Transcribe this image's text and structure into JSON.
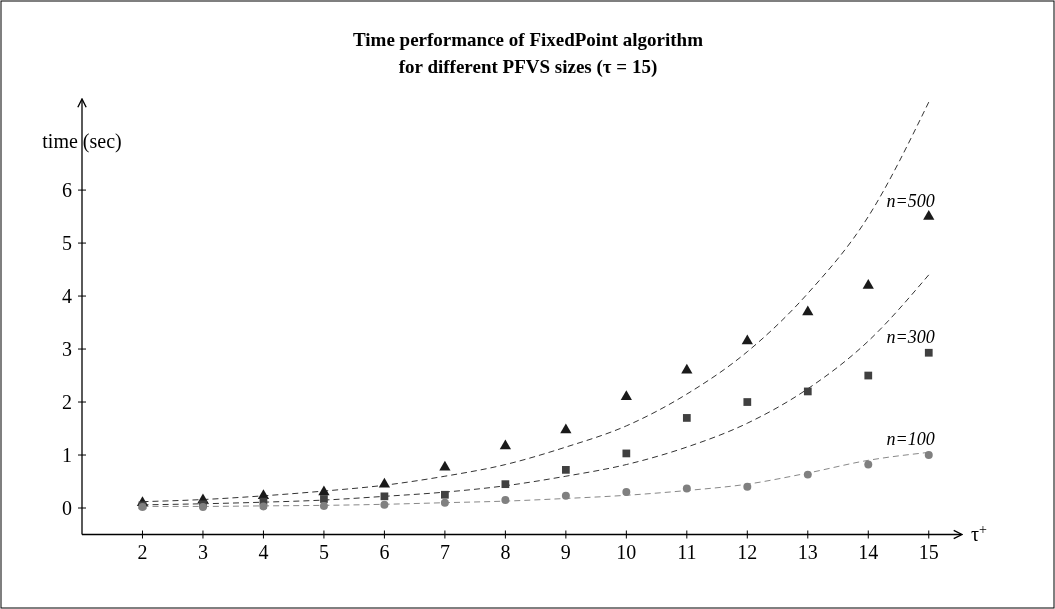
{
  "chart_data": {
    "type": "scatter",
    "title": "Time performance of FixedPoint algorithm\nfor different PFVS sizes (τ = 15)",
    "xlabel": "τ$^{+}$",
    "ylabel": "time (sec)",
    "xlim": [
      1,
      15.5
    ],
    "xticks": [
      2,
      3,
      4,
      5,
      6,
      7,
      8,
      9,
      10,
      11,
      12,
      13,
      14,
      15
    ],
    "ylim": [
      -0.5,
      7.7
    ],
    "yticks": [
      0,
      1,
      2,
      3,
      4,
      5,
      6
    ],
    "grid": false,
    "series": [
      {
        "type": "line",
        "color": "#333333",
        "line_style": "dashed",
        "marker": "none",
        "x": [
          2,
          3,
          4,
          5,
          6,
          7,
          8,
          9,
          10,
          11,
          12,
          13,
          14,
          15
        ],
        "values": [
          0.12,
          0.16,
          0.23,
          0.32,
          0.43,
          0.6,
          0.82,
          1.15,
          1.55,
          2.15,
          2.95,
          4.05,
          5.5,
          7.66
        ]
      },
      {
        "type": "line",
        "color": "#333333",
        "line_style": "dashed",
        "marker": "none",
        "x": [
          2,
          3,
          4,
          5,
          6,
          7,
          8,
          9,
          10,
          11,
          12,
          13,
          14,
          15
        ],
        "values": [
          0.06,
          0.08,
          0.11,
          0.15,
          0.22,
          0.3,
          0.42,
          0.6,
          0.82,
          1.15,
          1.6,
          2.25,
          3.15,
          4.4
        ]
      },
      {
        "type": "line",
        "color": "#888888",
        "line_style": "dashed",
        "marker": "none",
        "x": [
          2,
          3,
          4,
          5,
          6,
          7,
          8,
          9,
          10,
          11,
          12,
          13,
          14,
          15
        ],
        "values": [
          0.03,
          0.03,
          0.04,
          0.05,
          0.07,
          0.1,
          0.13,
          0.18,
          0.24,
          0.33,
          0.45,
          0.66,
          0.9,
          1.05
        ]
      },
      {
        "name": "n=500",
        "color": "#1a1a1a",
        "marker": "triangle",
        "x": [
          2,
          3,
          4,
          5,
          6,
          7,
          8,
          9,
          10,
          11,
          12,
          13,
          14,
          15
        ],
        "values": [
          0.1,
          0.15,
          0.23,
          0.3,
          0.45,
          0.77,
          1.17,
          1.47,
          2.1,
          2.6,
          3.15,
          3.7,
          4.2,
          5.5
        ]
      },
      {
        "name": "n=300",
        "color": "#404040",
        "marker": "square",
        "x": [
          2,
          3,
          4,
          5,
          6,
          7,
          8,
          9,
          10,
          11,
          12,
          13,
          14,
          15
        ],
        "values": [
          0.05,
          0.07,
          0.12,
          0.17,
          0.22,
          0.25,
          0.45,
          0.72,
          1.03,
          1.7,
          2.0,
          2.2,
          2.5,
          2.93
        ]
      },
      {
        "name": "n=100",
        "color": "#808080",
        "marker": "circle",
        "x": [
          2,
          3,
          4,
          5,
          6,
          7,
          8,
          9,
          10,
          11,
          12,
          13,
          14,
          15
        ],
        "values": [
          0.02,
          0.02,
          0.03,
          0.04,
          0.06,
          0.1,
          0.15,
          0.23,
          0.3,
          0.37,
          0.4,
          0.63,
          0.82,
          1.0
        ]
      }
    ]
  }
}
